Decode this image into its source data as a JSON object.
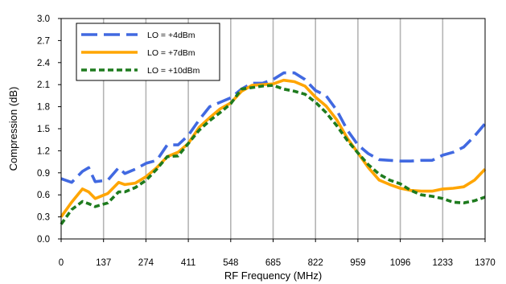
{
  "chart_data": {
    "type": "line",
    "xlabel": "RF Frequency (MHz)",
    "ylabel": "Compression (dB)",
    "xlim": [
      0,
      1370
    ],
    "ylim": [
      0,
      3.0
    ],
    "x_ticks": [
      "0",
      "137",
      "274",
      "411",
      "548",
      "685",
      "822",
      "959",
      "1096",
      "1233",
      "1370"
    ],
    "y_ticks": [
      "0.0",
      "0.3",
      "0.6",
      "0.9",
      "1.2",
      "1.5",
      "1.8",
      "2.1",
      "2.4",
      "2.7",
      "3.0"
    ],
    "grid": "vertical",
    "legend_position": "top-left",
    "x": [
      0,
      34,
      69,
      89,
      110,
      151,
      186,
      206,
      240,
      275,
      309,
      343,
      378,
      411,
      446,
      480,
      514,
      548,
      583,
      617,
      651,
      685,
      719,
      754,
      788,
      822,
      856,
      891,
      925,
      959,
      993,
      1028,
      1062,
      1096,
      1130,
      1164,
      1199,
      1233,
      1267,
      1301,
      1336,
      1370
    ],
    "series": [
      {
        "name": "LO = +4dBm",
        "color": "#4169E1",
        "dash": "long-dash",
        "values": [
          0.82,
          0.77,
          0.92,
          0.97,
          0.78,
          0.8,
          0.97,
          0.89,
          0.95,
          1.03,
          1.07,
          1.28,
          1.28,
          1.41,
          1.62,
          1.8,
          1.86,
          1.92,
          2.04,
          2.12,
          2.12,
          2.17,
          2.26,
          2.26,
          2.17,
          2.02,
          1.95,
          1.75,
          1.48,
          1.28,
          1.16,
          1.08,
          1.07,
          1.06,
          1.06,
          1.07,
          1.07,
          1.14,
          1.18,
          1.25,
          1.4,
          1.57
        ]
      },
      {
        "name": "LO = +7dBm",
        "color": "#FFA500",
        "dash": "solid",
        "values": [
          0.3,
          0.5,
          0.68,
          0.64,
          0.55,
          0.62,
          0.77,
          0.74,
          0.76,
          0.85,
          0.97,
          1.12,
          1.18,
          1.3,
          1.52,
          1.65,
          1.77,
          1.85,
          2.01,
          2.09,
          2.1,
          2.11,
          2.16,
          2.14,
          2.08,
          1.93,
          1.81,
          1.62,
          1.37,
          1.17,
          0.97,
          0.8,
          0.74,
          0.69,
          0.66,
          0.65,
          0.65,
          0.68,
          0.69,
          0.71,
          0.8,
          0.95
        ]
      },
      {
        "name": "LO = +10dBm",
        "color": "#1E7B1E",
        "dash": "short-dash",
        "values": [
          0.2,
          0.4,
          0.51,
          0.48,
          0.44,
          0.49,
          0.64,
          0.64,
          0.7,
          0.8,
          0.95,
          1.12,
          1.13,
          1.3,
          1.48,
          1.61,
          1.72,
          1.84,
          2.04,
          2.06,
          2.08,
          2.09,
          2.04,
          2.01,
          1.97,
          1.86,
          1.72,
          1.54,
          1.34,
          1.17,
          1.01,
          0.88,
          0.8,
          0.75,
          0.66,
          0.6,
          0.58,
          0.55,
          0.5,
          0.49,
          0.52,
          0.57
        ]
      }
    ]
  }
}
